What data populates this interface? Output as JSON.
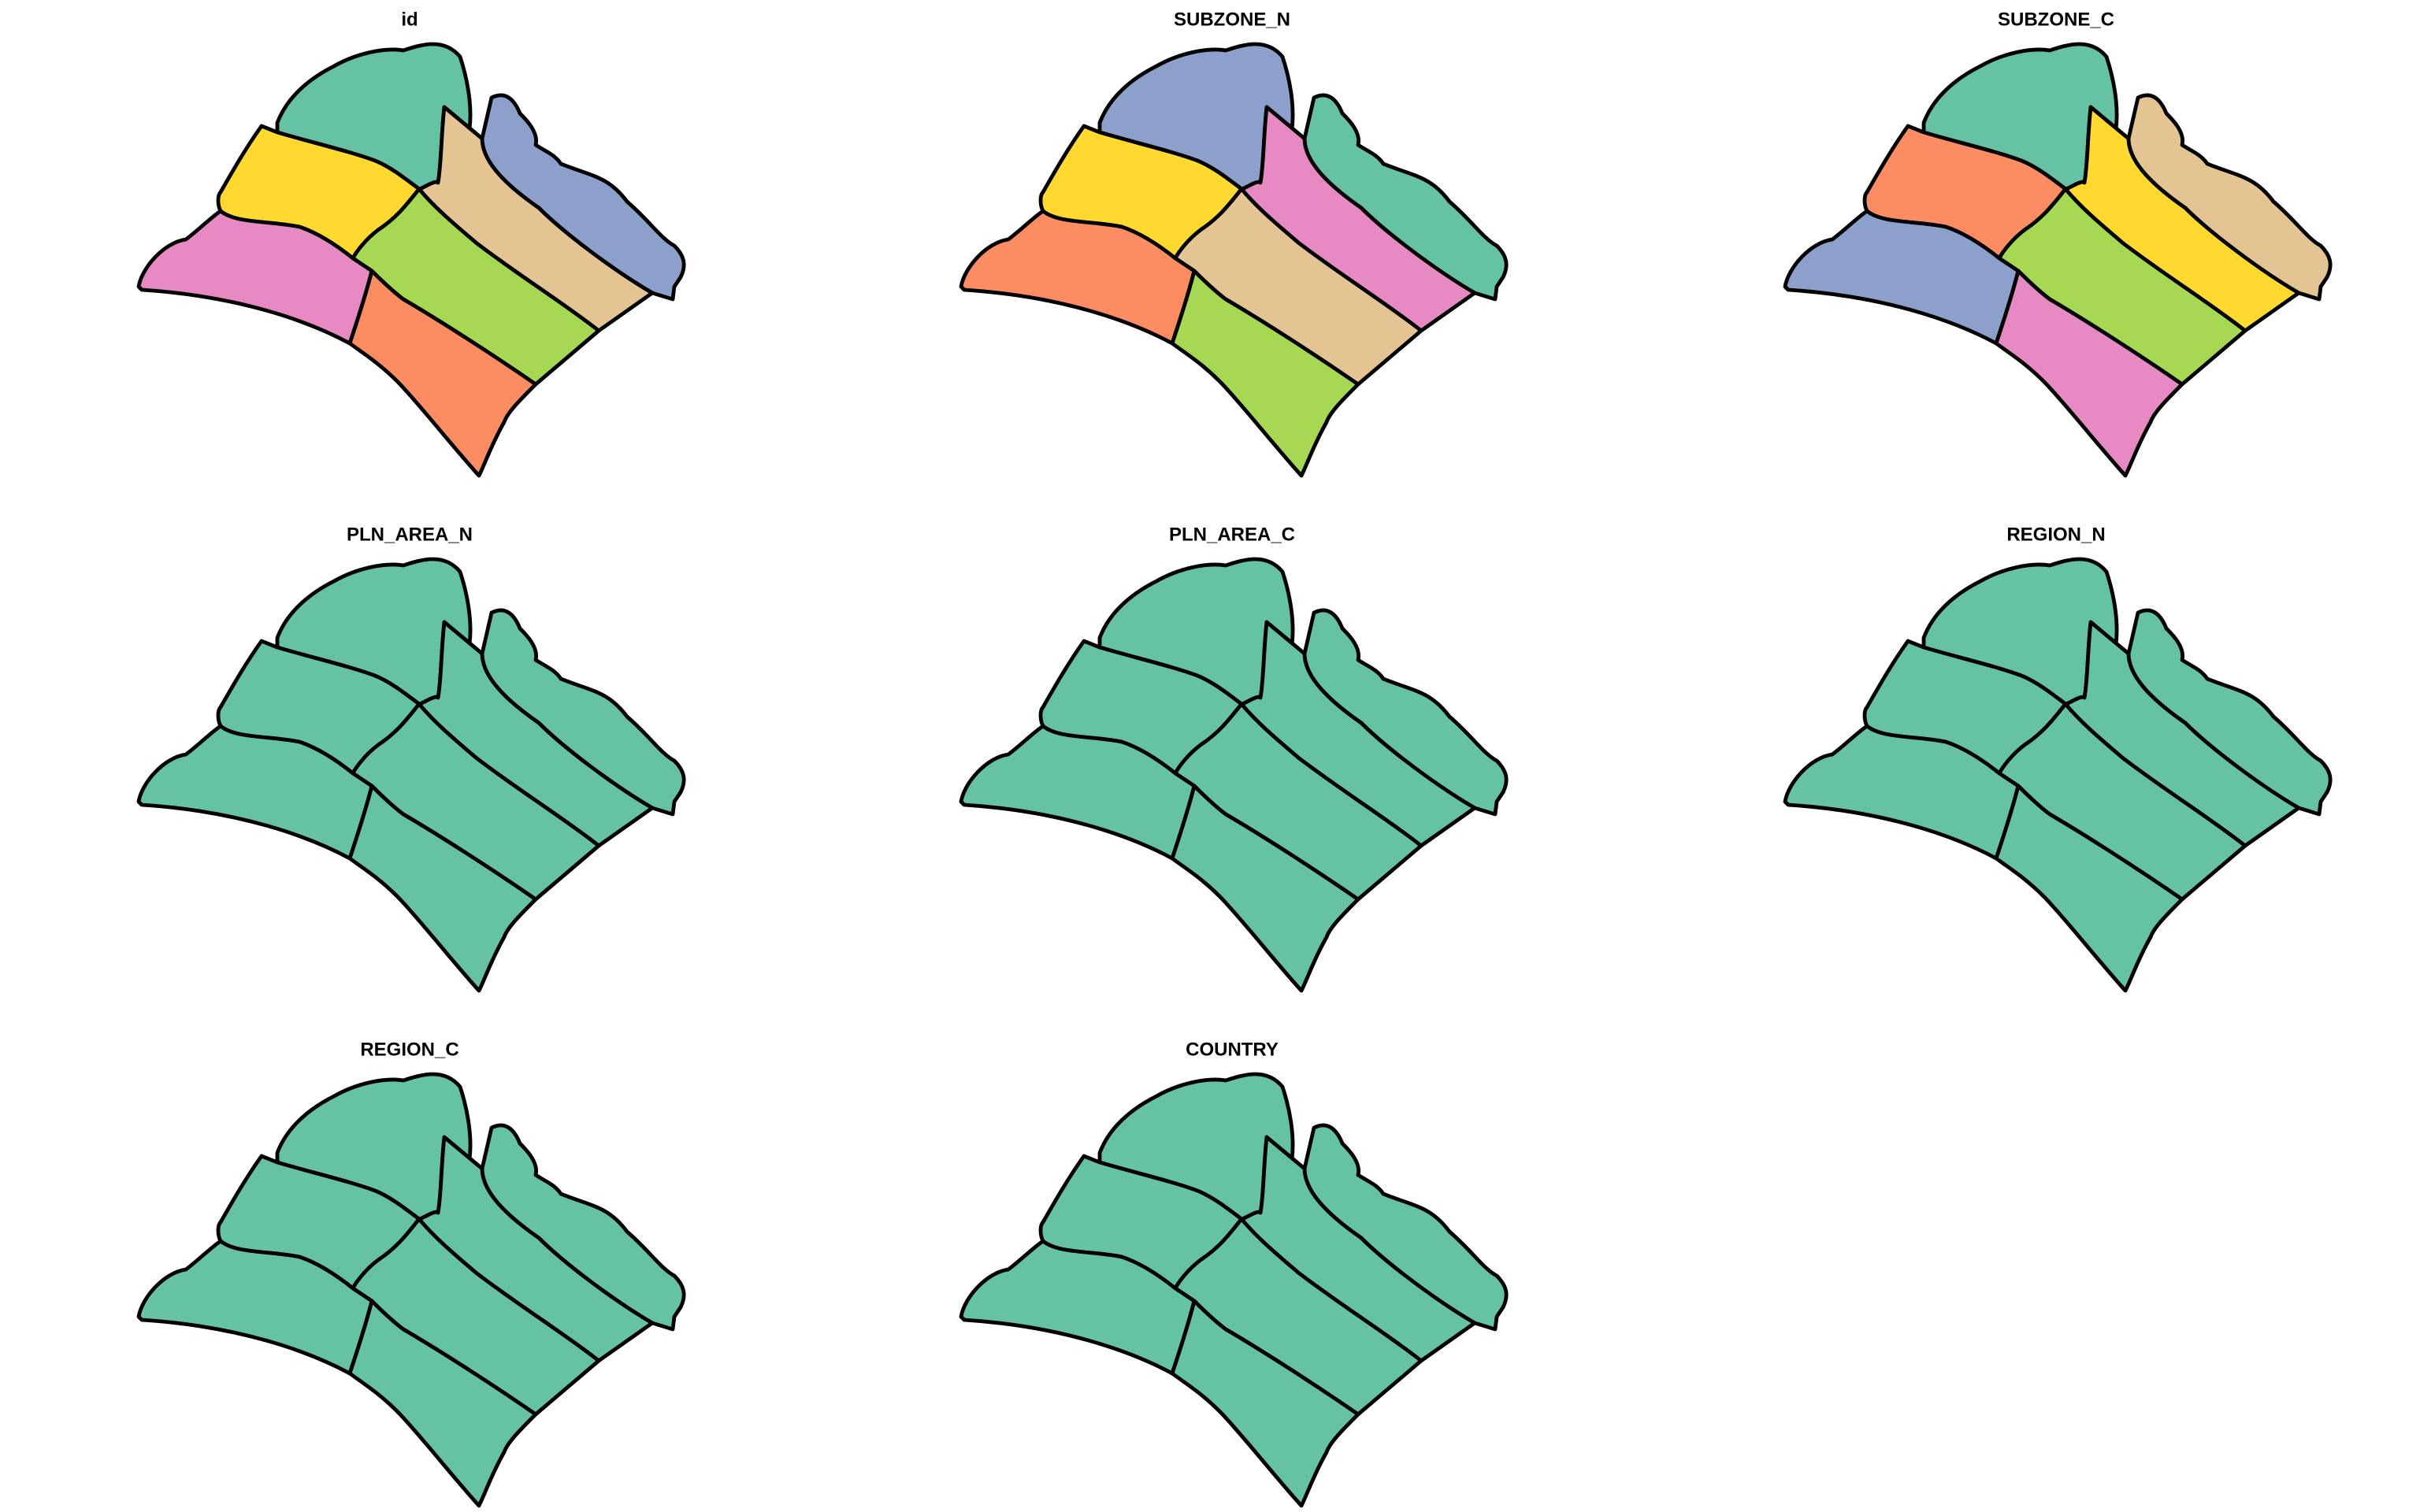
{
  "figure": {
    "panels": [
      {
        "title": "id",
        "fills": [
          "#8da0cb",
          "#66c2a5",
          "#e5c494",
          "#ffd92f",
          "#a6d854",
          "#e78ac3",
          "#fc8d62"
        ]
      },
      {
        "title": "SUBZONE_N",
        "fills": [
          "#66c2a5",
          "#8da0cb",
          "#e78ac3",
          "#ffd92f",
          "#e5c494",
          "#fc8d62",
          "#a6d854"
        ]
      },
      {
        "title": "SUBZONE_C",
        "fills": [
          "#e5c494",
          "#66c2a5",
          "#ffd92f",
          "#fc8d62",
          "#a6d854",
          "#8da0cb",
          "#e78ac3"
        ]
      },
      {
        "title": "PLN_AREA_N",
        "fills": [
          "#66c2a5",
          "#66c2a5",
          "#66c2a5",
          "#66c2a5",
          "#66c2a5",
          "#66c2a5",
          "#66c2a5"
        ]
      },
      {
        "title": "PLN_AREA_C",
        "fills": [
          "#66c2a5",
          "#66c2a5",
          "#66c2a5",
          "#66c2a5",
          "#66c2a5",
          "#66c2a5",
          "#66c2a5"
        ]
      },
      {
        "title": "REGION_N",
        "fills": [
          "#66c2a5",
          "#66c2a5",
          "#66c2a5",
          "#66c2a5",
          "#66c2a5",
          "#66c2a5",
          "#66c2a5"
        ]
      },
      {
        "title": "REGION_C",
        "fills": [
          "#66c2a5",
          "#66c2a5",
          "#66c2a5",
          "#66c2a5",
          "#66c2a5",
          "#66c2a5",
          "#66c2a5"
        ]
      },
      {
        "title": "COUNTRY",
        "fills": [
          "#66c2a5",
          "#66c2a5",
          "#66c2a5",
          "#66c2a5",
          "#66c2a5",
          "#66c2a5",
          "#66c2a5"
        ]
      }
    ]
  }
}
